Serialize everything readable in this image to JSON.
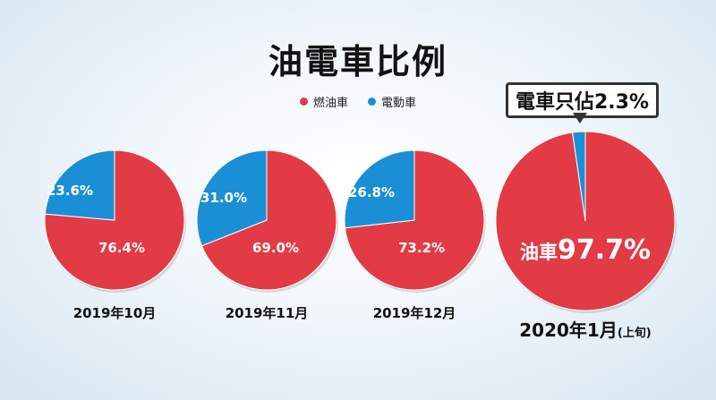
{
  "title": "油電車比例",
  "legend": [
    {
      "label": "燃油車",
      "color": "#e23b45"
    },
    {
      "label": "電動車",
      "color": "#1b8fd6"
    }
  ],
  "callout": "電車只佔2.3%",
  "chart_data": [
    {
      "type": "pie",
      "title": "2019年10月",
      "slices": [
        {
          "name": "燃油車",
          "value": 76.4,
          "label": "76.4%"
        },
        {
          "name": "電動車",
          "value": 23.6,
          "label": "23.6%"
        }
      ]
    },
    {
      "type": "pie",
      "title": "2019年11月",
      "slices": [
        {
          "name": "燃油車",
          "value": 69.0,
          "label": "69.0%"
        },
        {
          "name": "電動車",
          "value": 31.0,
          "label": "31.0%"
        }
      ]
    },
    {
      "type": "pie",
      "title": "2019年12月",
      "slices": [
        {
          "name": "燃油車",
          "value": 73.2,
          "label": "73.2%"
        },
        {
          "name": "電動車",
          "value": 26.8,
          "label": "26.8%"
        }
      ]
    },
    {
      "type": "pie",
      "title": "2020年1月",
      "title_suffix": "(上旬)",
      "slices": [
        {
          "name": "燃油車",
          "value": 97.7,
          "label": "97.7%",
          "prefix": "油車"
        },
        {
          "name": "電動車",
          "value": 2.3,
          "label": ""
        }
      ]
    }
  ]
}
